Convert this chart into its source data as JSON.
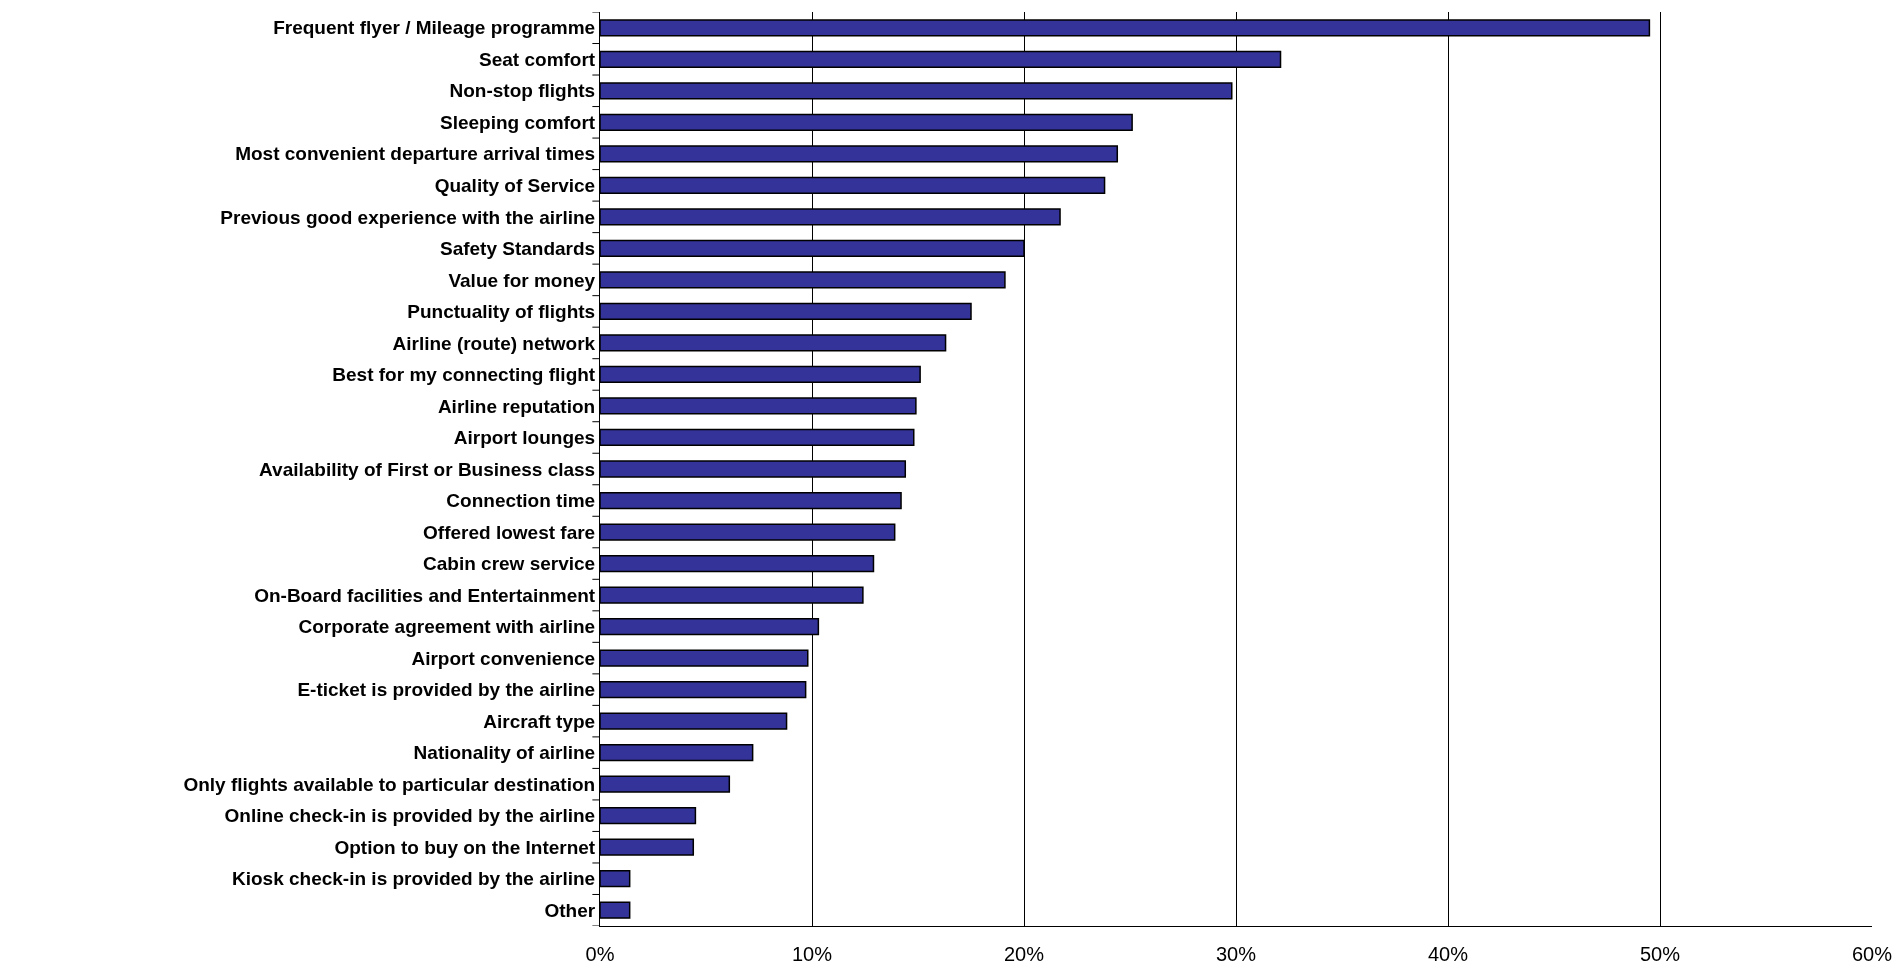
{
  "chart_data": {
    "type": "bar",
    "orientation": "horizontal",
    "categories": [
      "Frequent flyer / Mileage programme",
      "Seat comfort",
      "Non-stop flights",
      "Sleeping comfort",
      "Most convenient departure arrival times",
      "Quality of Service",
      "Previous good experience with the airline",
      "Safety Standards",
      "Value for money",
      "Punctuality of flights",
      "Airline (route) network",
      "Best for my connecting flight",
      "Airline reputation",
      "Airport lounges",
      "Availability of First or Business class",
      "Connection time",
      "Offered lowest fare",
      "Cabin crew service",
      "On-Board facilities and Entertainment",
      "Corporate agreement with airline",
      "Airport convenience",
      "E-ticket is provided by the airline",
      "Aircraft type",
      "Nationality of airline",
      "Only flights available to particular destination",
      "Online check-in is provided by the airline",
      "Option to buy on the Internet",
      "Kiosk check-in is provided by the airline",
      "Other"
    ],
    "values": [
      49.5,
      32.1,
      29.8,
      25.1,
      24.4,
      23.8,
      21.7,
      20.0,
      19.1,
      17.5,
      16.3,
      15.1,
      14.9,
      14.8,
      14.4,
      14.2,
      13.9,
      12.9,
      12.4,
      10.3,
      9.8,
      9.7,
      8.8,
      7.2,
      6.1,
      4.5,
      4.4,
      1.4,
      1.4
    ],
    "color": "#333399",
    "xlim": [
      0,
      60
    ],
    "xticks": [
      {
        "value": 0,
        "label": "0%"
      },
      {
        "value": 10,
        "label": "10%"
      },
      {
        "value": 20,
        "label": "20%"
      },
      {
        "value": 30,
        "label": "30%"
      },
      {
        "value": 40,
        "label": "40%"
      },
      {
        "value": 50,
        "label": "50%"
      },
      {
        "value": 60,
        "label": "60%"
      }
    ],
    "grid": "x",
    "legend": false
  }
}
